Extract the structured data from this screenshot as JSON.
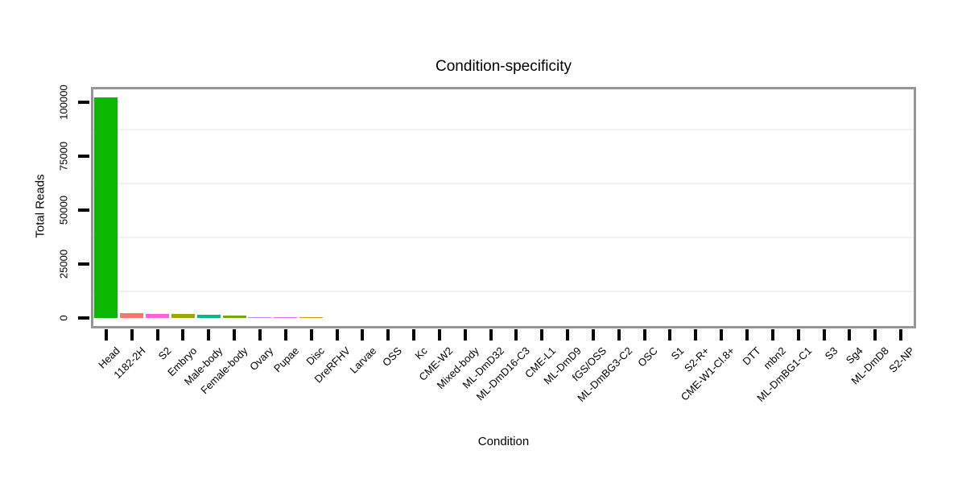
{
  "figure": {
    "background": "#FFFFFF",
    "panel_border_color": "#969696",
    "tick_color": "#000000",
    "minor_gridline_color": "#F1F1F1"
  },
  "chart_data": {
    "type": "bar",
    "title": "Condition-specificity",
    "xlabel": "Condition",
    "ylabel": "Total Reads",
    "legend": "none",
    "grid": "minor horizontal gridlines only, very light gray",
    "ylim": [
      0,
      107000
    ],
    "yticks": [
      0,
      25000,
      50000,
      75000,
      100000
    ],
    "ytick_labels": [
      "0",
      "25000",
      "50000",
      "75000",
      "100000"
    ],
    "minor_gridlines": [
      12500,
      37500,
      62500,
      87500
    ],
    "categories": [
      "Head",
      "1182-2H",
      "S2",
      "Embryo",
      "Male-body",
      "Female-body",
      "Ovary",
      "Pupae",
      "Disc",
      "DreRFHV",
      "Larvae",
      "OSS",
      "Kc",
      "CME-W2",
      "Mixed-body",
      "ML-DmD32",
      "ML-DmD16-C3",
      "CME-L1",
      "ML-DmD9",
      "fGS/OSS",
      "ML-DmBG3-C2",
      "OSC",
      "S1",
      "S2-R+",
      "CME-W1-Cl.8+",
      "DTT",
      "mbn2",
      "ML-DmBG1-C1",
      "S3",
      "Sg4",
      "ML-DmD8",
      "S2-NP"
    ],
    "values": [
      102400,
      2300,
      1800,
      1700,
      1650,
      950,
      500,
      470,
      430,
      0,
      0,
      0,
      0,
      0,
      0,
      0,
      0,
      0,
      0,
      0,
      0,
      0,
      0,
      0,
      0,
      0,
      0,
      0,
      0,
      0,
      0,
      0
    ],
    "colors": [
      "#0CB702",
      "#F8766D",
      "#F763E1",
      "#9FA503",
      "#00BA8D",
      "#72A800",
      "#BB83FB",
      "#D56DFA",
      "#C49A00",
      null,
      null,
      null,
      null,
      null,
      null,
      null,
      null,
      null,
      null,
      null,
      null,
      null,
      null,
      null,
      null,
      null,
      null,
      null,
      null,
      null,
      null,
      null
    ]
  }
}
